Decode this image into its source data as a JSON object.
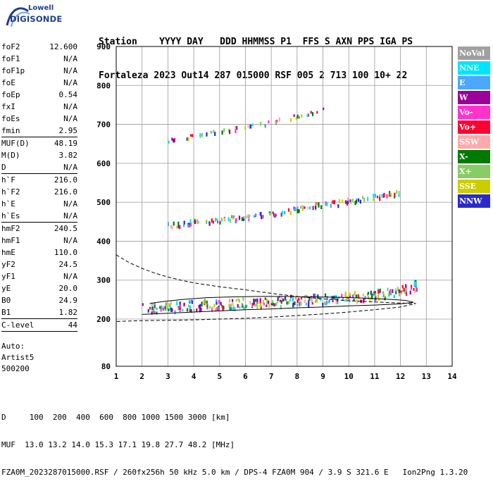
{
  "logo": {
    "line1": "Lowell",
    "line2": "DIGISONDE"
  },
  "header": {
    "labels": "Station    YYYY DAY   DDD HHMMSS P1  FFS S AXN PPS IGA PS",
    "values": "Fortaleza 2023 Out14 287 015000 RSF 005 2 713 100 10+ 22"
  },
  "params": [
    {
      "label": "foF2",
      "value": "12.600"
    },
    {
      "label": "foF1",
      "value": "N/A"
    },
    {
      "label": "foF1p",
      "value": "N/A"
    },
    {
      "label": "foE",
      "value": "N/A"
    },
    {
      "label": "foEp",
      "value": "0.54"
    },
    {
      "label": "fxI",
      "value": "N/A"
    },
    {
      "label": "foEs",
      "value": "N/A"
    },
    {
      "label": "fmin",
      "value": "2.95"
    },
    {
      "sep": true
    },
    {
      "label": "MUF(D)",
      "value": "48.19"
    },
    {
      "label": "M(D)",
      "value": "3.82"
    },
    {
      "label": "D",
      "value": "N/A"
    },
    {
      "sep": true
    },
    {
      "label": "h`F",
      "value": "216.0"
    },
    {
      "label": "h`F2",
      "value": "216.0"
    },
    {
      "label": "h`E",
      "value": "N/A"
    },
    {
      "label": "h`Es",
      "value": "N/A"
    },
    {
      "sep": true
    },
    {
      "label": "hmF2",
      "value": "240.5"
    },
    {
      "label": "hmF1",
      "value": "N/A"
    },
    {
      "label": "hmE",
      "value": "110.0"
    },
    {
      "label": "yF2",
      "value": "24.5"
    },
    {
      "label": "yF1",
      "value": "N/A"
    },
    {
      "label": "yE",
      "value": "20.0"
    },
    {
      "label": "B0",
      "value": "24.9"
    },
    {
      "label": "B1",
      "value": "1.82"
    },
    {
      "sep": true
    },
    {
      "label": "C-level",
      "value": "44"
    },
    {
      "sep": true
    }
  ],
  "auto": {
    "line1": "Auto:",
    "line2": "Artist5",
    "line3": "500200"
  },
  "bottom": {
    "line1": "D     100  200  400  600  800 1000 1500 3000 [km]",
    "line2": "MUF  13.0 13.2 14.0 15.3 17.1 19.8 27.7 48.2 [MHz]",
    "line3": "FZA0M_2023287015000.RSF / 260fx256h 50 kHz 5.0 km / DPS-4 FZA0M 904 / 3.9 S 321.6 E   Ion2Png 1.3.20"
  },
  "legend": [
    {
      "label": "NoVal",
      "color": "#a0a0a0"
    },
    {
      "label": "NNE",
      "color": "#00e5ff"
    },
    {
      "label": "E",
      "color": "#4aa8ff"
    },
    {
      "label": "W",
      "color": "#9b0099"
    },
    {
      "label": "Vo-",
      "color": "#ff33cc"
    },
    {
      "label": "Vo+",
      "color": "#ff0033"
    },
    {
      "label": "SSW",
      "color": "#ffaaaa"
    },
    {
      "label": "X-",
      "color": "#007a00"
    },
    {
      "label": "X+",
      "color": "#88cc66"
    },
    {
      "label": "SSE",
      "color": "#cccc00"
    },
    {
      "label": "NNW",
      "color": "#2a2acc"
    }
  ],
  "chart_data": {
    "type": "scatter",
    "title": "",
    "xlabel": "",
    "ylabel": "",
    "xlim": [
      1,
      14
    ],
    "ylim": [
      80,
      900
    ],
    "x_ticks": [
      1,
      2,
      3,
      4,
      5,
      6,
      7,
      8,
      9,
      10,
      11,
      12,
      13,
      14
    ],
    "y_ticks": [
      80,
      200,
      300,
      400,
      500,
      600,
      700,
      800,
      900
    ],
    "grid": true,
    "echo_traces": [
      {
        "name": "F2 trace",
        "points": [
          [
            2.0,
            226
          ],
          [
            2.5,
            228
          ],
          [
            3.0,
            230
          ],
          [
            3.5,
            232
          ],
          [
            4.0,
            234
          ],
          [
            4.5,
            236
          ],
          [
            5.0,
            237
          ],
          [
            5.5,
            238
          ],
          [
            6.0,
            240
          ],
          [
            6.5,
            241
          ],
          [
            7.0,
            243
          ],
          [
            7.5,
            245
          ],
          [
            8.0,
            247
          ],
          [
            8.5,
            249
          ],
          [
            9.0,
            251
          ],
          [
            9.5,
            253
          ],
          [
            10.0,
            255
          ],
          [
            10.5,
            258
          ],
          [
            11.0,
            262
          ],
          [
            11.5,
            266
          ],
          [
            12.0,
            272
          ],
          [
            12.4,
            280
          ],
          [
            12.6,
            285
          ]
        ]
      },
      {
        "name": "second hop",
        "points": [
          [
            2.9,
            440
          ],
          [
            3.5,
            445
          ],
          [
            4.0,
            450
          ],
          [
            4.5,
            452
          ],
          [
            5.0,
            455
          ],
          [
            5.5,
            460
          ],
          [
            6.0,
            463
          ],
          [
            6.5,
            467
          ],
          [
            7.0,
            472
          ],
          [
            7.5,
            478
          ],
          [
            8.0,
            483
          ],
          [
            8.5,
            490
          ],
          [
            9.0,
            495
          ],
          [
            9.5,
            498
          ],
          [
            10.0,
            505
          ],
          [
            10.5,
            510
          ],
          [
            11.0,
            515
          ],
          [
            11.5,
            520
          ],
          [
            12.0,
            525
          ]
        ]
      },
      {
        "name": "third hop",
        "points": [
          [
            3.0,
            660
          ],
          [
            3.5,
            665
          ],
          [
            4.0,
            672
          ],
          [
            4.5,
            678
          ],
          [
            5.0,
            685
          ],
          [
            5.5,
            690
          ],
          [
            6.0,
            697
          ],
          [
            6.5,
            700
          ],
          [
            7.0,
            707
          ],
          [
            7.5,
            715
          ],
          [
            8.0,
            722
          ],
          [
            8.5,
            732
          ],
          [
            9.0,
            742
          ]
        ]
      }
    ],
    "profile_curves": [
      {
        "name": "dashed profile",
        "style": "dashed",
        "points": [
          [
            1.0,
            365
          ],
          [
            1.5,
            345
          ],
          [
            2.0,
            330
          ],
          [
            2.5,
            318
          ],
          [
            3.0,
            308
          ],
          [
            3.5,
            300
          ],
          [
            4.0,
            293
          ],
          [
            5.0,
            283
          ],
          [
            6.0,
            275
          ],
          [
            7.0,
            266
          ],
          [
            8.0,
            258
          ],
          [
            9.0,
            252
          ],
          [
            10.0,
            247
          ],
          [
            11.0,
            244
          ],
          [
            12.0,
            241
          ],
          [
            12.6,
            240
          ],
          [
            12.0,
            231
          ],
          [
            11.0,
            224
          ],
          [
            10.0,
            218
          ],
          [
            9.0,
            213
          ],
          [
            8.0,
            209
          ],
          [
            7.0,
            205
          ],
          [
            6.0,
            202
          ],
          [
            5.0,
            200
          ],
          [
            4.0,
            198
          ],
          [
            3.0,
            197
          ],
          [
            2.0,
            196
          ],
          [
            1.0,
            194
          ]
        ]
      },
      {
        "name": "solid curve",
        "style": "solid",
        "points": [
          [
            2.0,
            212
          ],
          [
            3.0,
            215
          ],
          [
            4.0,
            218
          ],
          [
            5.0,
            221
          ],
          [
            6.0,
            224
          ],
          [
            7.0,
            226
          ],
          [
            8.0,
            229
          ],
          [
            9.0,
            231
          ],
          [
            10.0,
            234
          ],
          [
            11.0,
            236
          ],
          [
            12.0,
            239
          ],
          [
            12.5,
            243
          ],
          [
            12.2,
            248
          ],
          [
            11.5,
            251
          ],
          [
            10.5,
            254
          ],
          [
            9.5,
            256
          ],
          [
            8.5,
            257
          ],
          [
            7.5,
            258
          ],
          [
            6.5,
            258
          ],
          [
            5.5,
            257
          ],
          [
            4.5,
            255
          ],
          [
            3.5,
            250
          ],
          [
            2.8,
            245
          ],
          [
            2.3,
            240
          ]
        ]
      }
    ]
  }
}
